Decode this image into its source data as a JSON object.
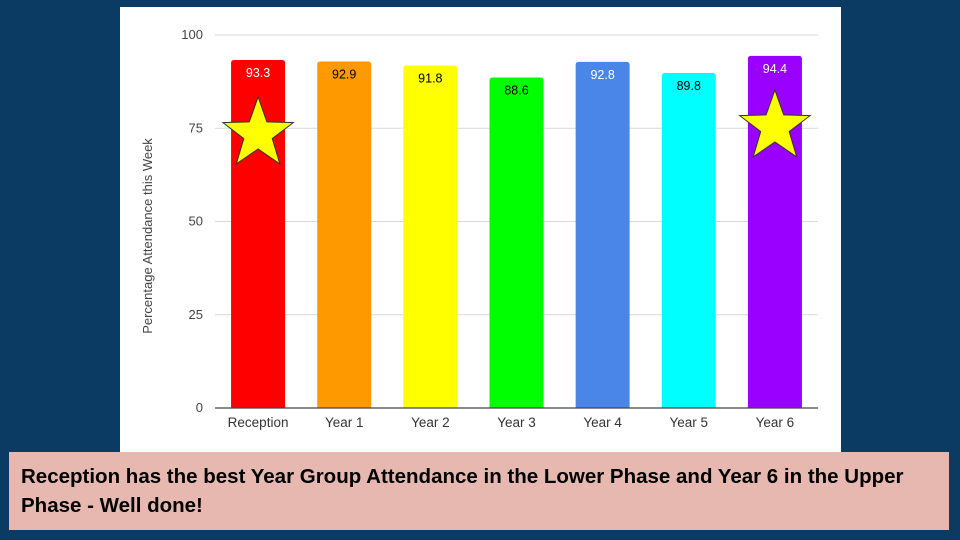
{
  "chart_data": {
    "type": "bar",
    "categories": [
      "Reception",
      "Year 1",
      "Year 2",
      "Year 3",
      "Year 4",
      "Year 5",
      "Year 6"
    ],
    "values": [
      93.3,
      92.9,
      91.8,
      88.6,
      92.8,
      89.8,
      94.4
    ],
    "data_labels": [
      "93.3",
      "92.9",
      "91.8",
      "88.6",
      "92.8",
      "89.8",
      "94.4"
    ],
    "bar_colors": [
      "#ff0000",
      "#ff9900",
      "#ffff00",
      "#00ff00",
      "#4a86e8",
      "#00ffff",
      "#9900ff"
    ],
    "label_colors": [
      "#ffffff",
      "#000000",
      "#000000",
      "#000000",
      "#ffffff",
      "#000000",
      "#ffffff"
    ],
    "ylabel": "Percentage Attendance this Week",
    "xlabel": "",
    "ylim": [
      0,
      100
    ],
    "yticks": [
      0,
      25,
      50,
      75,
      100
    ],
    "ytick_labels": [
      "0",
      "25",
      "50",
      "75",
      "100"
    ],
    "grid": true,
    "legend": "none",
    "star_markers": {
      "categories": [
        "Reception",
        "Year 6"
      ],
      "color": "#ffff00",
      "icon": "star-icon"
    }
  },
  "caption": {
    "text": "Reception has the best Year Group Attendance in the Lower Phase and Year 6 in the Upper Phase - Well done!"
  },
  "colors": {
    "background": "#0b3a63",
    "card": "#ffffff",
    "caption_background": "#e6b8af"
  }
}
